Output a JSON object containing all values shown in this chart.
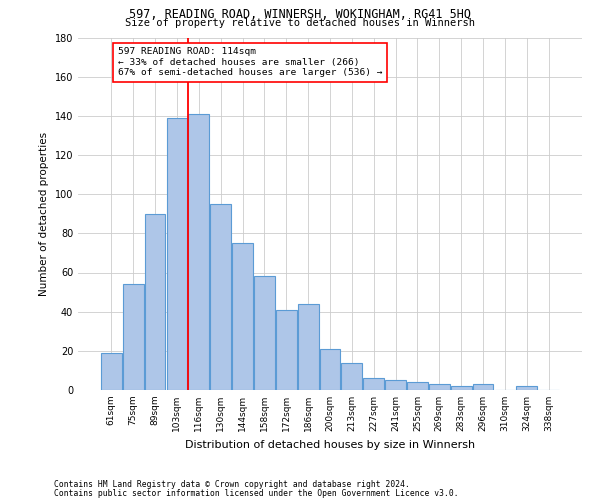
{
  "title1": "597, READING ROAD, WINNERSH, WOKINGHAM, RG41 5HQ",
  "title2": "Size of property relative to detached houses in Winnersh",
  "xlabel": "Distribution of detached houses by size in Winnersh",
  "ylabel": "Number of detached properties",
  "categories": [
    "61sqm",
    "75sqm",
    "89sqm",
    "103sqm",
    "116sqm",
    "130sqm",
    "144sqm",
    "158sqm",
    "172sqm",
    "186sqm",
    "200sqm",
    "213sqm",
    "227sqm",
    "241sqm",
    "255sqm",
    "269sqm",
    "283sqm",
    "296sqm",
    "310sqm",
    "324sqm",
    "338sqm"
  ],
  "values": [
    19,
    54,
    90,
    139,
    141,
    95,
    75,
    58,
    41,
    44,
    21,
    14,
    6,
    5,
    4,
    3,
    2,
    3,
    0,
    2,
    0
  ],
  "bar_color": "#aec6e8",
  "bar_edgecolor": "#5b9bd5",
  "ylim": [
    0,
    180
  ],
  "yticks": [
    0,
    20,
    40,
    60,
    80,
    100,
    120,
    140,
    160,
    180
  ],
  "property_label": "597 READING ROAD: 114sqm",
  "annotation_line1": "← 33% of detached houses are smaller (266)",
  "annotation_line2": "67% of semi-detached houses are larger (536) →",
  "background_color": "#ffffff",
  "grid_color": "#cccccc",
  "footnote1": "Contains HM Land Registry data © Crown copyright and database right 2024.",
  "footnote2": "Contains public sector information licensed under the Open Government Licence v3.0."
}
